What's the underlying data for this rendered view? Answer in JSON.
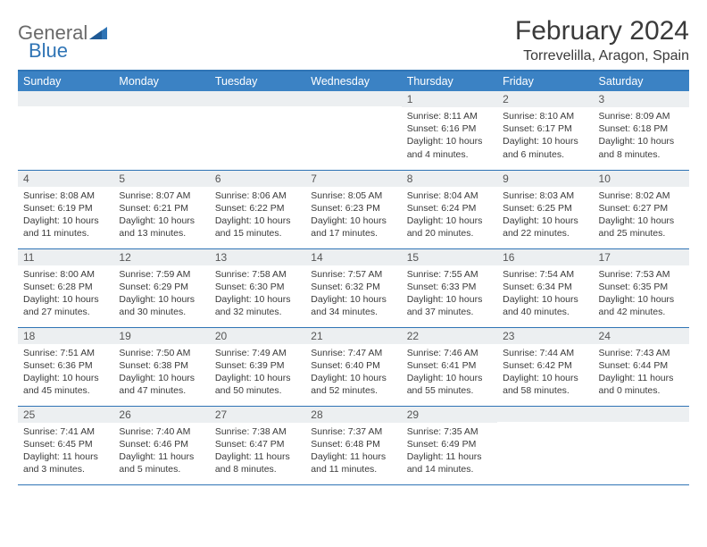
{
  "logo": {
    "text1": "General",
    "text2": "Blue"
  },
  "title": "February 2024",
  "location": "Torrevelilla, Aragon, Spain",
  "colors": {
    "header_bg": "#3b82c4",
    "header_text": "#ffffff",
    "border": "#2f74b5",
    "daynum_bg": "#eceff1",
    "body_text": "#3a3a3a",
    "logo_gray": "#6a6a6a",
    "logo_blue": "#2f74b5",
    "page_bg": "#ffffff"
  },
  "weekdays": [
    "Sunday",
    "Monday",
    "Tuesday",
    "Wednesday",
    "Thursday",
    "Friday",
    "Saturday"
  ],
  "weeks": [
    [
      {
        "day": "",
        "sunrise": "",
        "sunset": "",
        "daylight": ""
      },
      {
        "day": "",
        "sunrise": "",
        "sunset": "",
        "daylight": ""
      },
      {
        "day": "",
        "sunrise": "",
        "sunset": "",
        "daylight": ""
      },
      {
        "day": "",
        "sunrise": "",
        "sunset": "",
        "daylight": ""
      },
      {
        "day": "1",
        "sunrise": "Sunrise: 8:11 AM",
        "sunset": "Sunset: 6:16 PM",
        "daylight": "Daylight: 10 hours and 4 minutes."
      },
      {
        "day": "2",
        "sunrise": "Sunrise: 8:10 AM",
        "sunset": "Sunset: 6:17 PM",
        "daylight": "Daylight: 10 hours and 6 minutes."
      },
      {
        "day": "3",
        "sunrise": "Sunrise: 8:09 AM",
        "sunset": "Sunset: 6:18 PM",
        "daylight": "Daylight: 10 hours and 8 minutes."
      }
    ],
    [
      {
        "day": "4",
        "sunrise": "Sunrise: 8:08 AM",
        "sunset": "Sunset: 6:19 PM",
        "daylight": "Daylight: 10 hours and 11 minutes."
      },
      {
        "day": "5",
        "sunrise": "Sunrise: 8:07 AM",
        "sunset": "Sunset: 6:21 PM",
        "daylight": "Daylight: 10 hours and 13 minutes."
      },
      {
        "day": "6",
        "sunrise": "Sunrise: 8:06 AM",
        "sunset": "Sunset: 6:22 PM",
        "daylight": "Daylight: 10 hours and 15 minutes."
      },
      {
        "day": "7",
        "sunrise": "Sunrise: 8:05 AM",
        "sunset": "Sunset: 6:23 PM",
        "daylight": "Daylight: 10 hours and 17 minutes."
      },
      {
        "day": "8",
        "sunrise": "Sunrise: 8:04 AM",
        "sunset": "Sunset: 6:24 PM",
        "daylight": "Daylight: 10 hours and 20 minutes."
      },
      {
        "day": "9",
        "sunrise": "Sunrise: 8:03 AM",
        "sunset": "Sunset: 6:25 PM",
        "daylight": "Daylight: 10 hours and 22 minutes."
      },
      {
        "day": "10",
        "sunrise": "Sunrise: 8:02 AM",
        "sunset": "Sunset: 6:27 PM",
        "daylight": "Daylight: 10 hours and 25 minutes."
      }
    ],
    [
      {
        "day": "11",
        "sunrise": "Sunrise: 8:00 AM",
        "sunset": "Sunset: 6:28 PM",
        "daylight": "Daylight: 10 hours and 27 minutes."
      },
      {
        "day": "12",
        "sunrise": "Sunrise: 7:59 AM",
        "sunset": "Sunset: 6:29 PM",
        "daylight": "Daylight: 10 hours and 30 minutes."
      },
      {
        "day": "13",
        "sunrise": "Sunrise: 7:58 AM",
        "sunset": "Sunset: 6:30 PM",
        "daylight": "Daylight: 10 hours and 32 minutes."
      },
      {
        "day": "14",
        "sunrise": "Sunrise: 7:57 AM",
        "sunset": "Sunset: 6:32 PM",
        "daylight": "Daylight: 10 hours and 34 minutes."
      },
      {
        "day": "15",
        "sunrise": "Sunrise: 7:55 AM",
        "sunset": "Sunset: 6:33 PM",
        "daylight": "Daylight: 10 hours and 37 minutes."
      },
      {
        "day": "16",
        "sunrise": "Sunrise: 7:54 AM",
        "sunset": "Sunset: 6:34 PM",
        "daylight": "Daylight: 10 hours and 40 minutes."
      },
      {
        "day": "17",
        "sunrise": "Sunrise: 7:53 AM",
        "sunset": "Sunset: 6:35 PM",
        "daylight": "Daylight: 10 hours and 42 minutes."
      }
    ],
    [
      {
        "day": "18",
        "sunrise": "Sunrise: 7:51 AM",
        "sunset": "Sunset: 6:36 PM",
        "daylight": "Daylight: 10 hours and 45 minutes."
      },
      {
        "day": "19",
        "sunrise": "Sunrise: 7:50 AM",
        "sunset": "Sunset: 6:38 PM",
        "daylight": "Daylight: 10 hours and 47 minutes."
      },
      {
        "day": "20",
        "sunrise": "Sunrise: 7:49 AM",
        "sunset": "Sunset: 6:39 PM",
        "daylight": "Daylight: 10 hours and 50 minutes."
      },
      {
        "day": "21",
        "sunrise": "Sunrise: 7:47 AM",
        "sunset": "Sunset: 6:40 PM",
        "daylight": "Daylight: 10 hours and 52 minutes."
      },
      {
        "day": "22",
        "sunrise": "Sunrise: 7:46 AM",
        "sunset": "Sunset: 6:41 PM",
        "daylight": "Daylight: 10 hours and 55 minutes."
      },
      {
        "day": "23",
        "sunrise": "Sunrise: 7:44 AM",
        "sunset": "Sunset: 6:42 PM",
        "daylight": "Daylight: 10 hours and 58 minutes."
      },
      {
        "day": "24",
        "sunrise": "Sunrise: 7:43 AM",
        "sunset": "Sunset: 6:44 PM",
        "daylight": "Daylight: 11 hours and 0 minutes."
      }
    ],
    [
      {
        "day": "25",
        "sunrise": "Sunrise: 7:41 AM",
        "sunset": "Sunset: 6:45 PM",
        "daylight": "Daylight: 11 hours and 3 minutes."
      },
      {
        "day": "26",
        "sunrise": "Sunrise: 7:40 AM",
        "sunset": "Sunset: 6:46 PM",
        "daylight": "Daylight: 11 hours and 5 minutes."
      },
      {
        "day": "27",
        "sunrise": "Sunrise: 7:38 AM",
        "sunset": "Sunset: 6:47 PM",
        "daylight": "Daylight: 11 hours and 8 minutes."
      },
      {
        "day": "28",
        "sunrise": "Sunrise: 7:37 AM",
        "sunset": "Sunset: 6:48 PM",
        "daylight": "Daylight: 11 hours and 11 minutes."
      },
      {
        "day": "29",
        "sunrise": "Sunrise: 7:35 AM",
        "sunset": "Sunset: 6:49 PM",
        "daylight": "Daylight: 11 hours and 14 minutes."
      },
      {
        "day": "",
        "sunrise": "",
        "sunset": "",
        "daylight": ""
      },
      {
        "day": "",
        "sunrise": "",
        "sunset": "",
        "daylight": ""
      }
    ]
  ]
}
